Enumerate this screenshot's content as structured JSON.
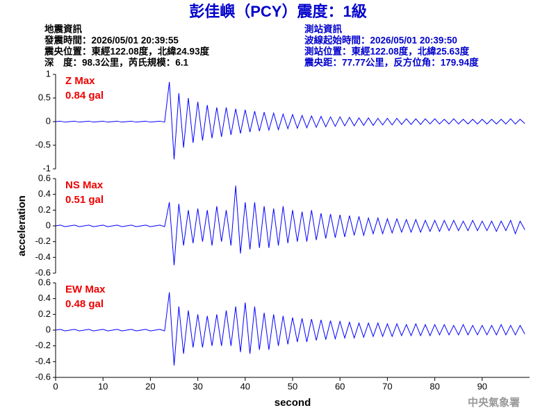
{
  "header": {
    "title": "彭佳嶼（PCY）震度：1級",
    "left": [
      "地震資訊",
      "發震時間：2026/05/01 20:39:55",
      "震央位置：東經122.08度，北緯24.93度",
      "深　度：98.3公里，芮氏規模：6.1"
    ],
    "right": [
      "測站資訊",
      "波線起始時間：2026/05/01 20:39:50",
      "測站位置：東經122.08度，北緯25.63度",
      "震央距：77.77公里，反方位角：179.94度"
    ],
    "footer": "中央氣象署"
  },
  "chart_data": [
    {
      "type": "line",
      "annotations": [
        "Z Max",
        "0.84 gal"
      ],
      "color": "#0000ff",
      "xlim": [
        0,
        100
      ],
      "ylim": [
        -1,
        1
      ],
      "yticks": [
        -1,
        -0.5,
        0,
        0.5,
        1
      ],
      "x": [
        0,
        1,
        2,
        3,
        4,
        5,
        6,
        7,
        8,
        9,
        10,
        11,
        12,
        13,
        14,
        15,
        16,
        17,
        18,
        19,
        20,
        21,
        22,
        23,
        24,
        25,
        26,
        27,
        28,
        29,
        30,
        31,
        32,
        33,
        34,
        35,
        36,
        37,
        38,
        39,
        40,
        41,
        42,
        43,
        44,
        45,
        46,
        47,
        48,
        49,
        50,
        51,
        52,
        53,
        54,
        55,
        56,
        57,
        58,
        59,
        60,
        61,
        62,
        63,
        64,
        65,
        66,
        67,
        68,
        69,
        70,
        71,
        72,
        73,
        74,
        75,
        76,
        77,
        78,
        79,
        80,
        81,
        82,
        83,
        84,
        85,
        86,
        87,
        88,
        89,
        90,
        91,
        92,
        93,
        94,
        95,
        96,
        97,
        98,
        99
      ],
      "values": [
        0,
        0.01,
        -0.01,
        0,
        0.01,
        -0.01,
        0,
        0.01,
        -0.01,
        0,
        0.01,
        -0.01,
        0,
        0.01,
        -0.01,
        0,
        0.01,
        -0.01,
        0,
        0.01,
        -0.01,
        0,
        0.01,
        -0.01,
        0.84,
        -0.8,
        0.6,
        -0.55,
        0.5,
        -0.45,
        0.42,
        -0.4,
        0.35,
        -0.35,
        0.3,
        -0.32,
        0.3,
        -0.28,
        0.27,
        -0.25,
        0.25,
        -0.22,
        0.22,
        -0.2,
        0.2,
        -0.18,
        0.18,
        -0.17,
        0.16,
        -0.15,
        0.15,
        -0.14,
        0.13,
        -0.13,
        0.12,
        -0.12,
        0.11,
        -0.11,
        0.1,
        -0.1,
        0.1,
        -0.09,
        0.09,
        -0.09,
        0.08,
        -0.08,
        0.08,
        -0.08,
        0.07,
        -0.07,
        0.07,
        -0.07,
        0.07,
        -0.06,
        0.06,
        -0.06,
        0.06,
        -0.06,
        0.06,
        -0.05,
        0.06,
        -0.05,
        0.05,
        -0.05,
        0.06,
        -0.05,
        0.05,
        -0.05,
        0.05,
        -0.05,
        0.05,
        -0.05,
        0.05,
        -0.05,
        0.05,
        -0.05,
        0.06,
        -0.05,
        0.05,
        -0.04
      ]
    },
    {
      "type": "line",
      "annotations": [
        "NS Max",
        "0.51 gal"
      ],
      "color": "#0000ff",
      "ylabel": "acceleration",
      "xlim": [
        0,
        100
      ],
      "ylim": [
        -0.6,
        0.6
      ],
      "yticks": [
        -0.6,
        -0.4,
        -0.2,
        0,
        0.2,
        0.4,
        0.6
      ],
      "x": [
        0,
        1,
        2,
        3,
        4,
        5,
        6,
        7,
        8,
        9,
        10,
        11,
        12,
        13,
        14,
        15,
        16,
        17,
        18,
        19,
        20,
        21,
        22,
        23,
        24,
        25,
        26,
        27,
        28,
        29,
        30,
        31,
        32,
        33,
        34,
        35,
        36,
        37,
        38,
        39,
        40,
        41,
        42,
        43,
        44,
        45,
        46,
        47,
        48,
        49,
        50,
        51,
        52,
        53,
        54,
        55,
        56,
        57,
        58,
        59,
        60,
        61,
        62,
        63,
        64,
        65,
        66,
        67,
        68,
        69,
        70,
        71,
        72,
        73,
        74,
        75,
        76,
        77,
        78,
        79,
        80,
        81,
        82,
        83,
        84,
        85,
        86,
        87,
        88,
        89,
        90,
        91,
        92,
        93,
        94,
        95,
        96,
        97,
        98,
        99
      ],
      "values": [
        0,
        0.01,
        -0.01,
        0,
        0.01,
        -0.01,
        0,
        0.01,
        -0.01,
        0,
        0.01,
        -0.01,
        0,
        0.01,
        -0.01,
        0,
        0.01,
        -0.01,
        0,
        0.01,
        -0.01,
        0,
        0.01,
        -0.01,
        0.3,
        -0.5,
        0.28,
        -0.25,
        0.2,
        -0.22,
        0.22,
        -0.2,
        0.2,
        -0.25,
        0.25,
        -0.2,
        0.2,
        -0.25,
        0.51,
        -0.35,
        0.3,
        -0.3,
        0.3,
        -0.28,
        0.25,
        -0.28,
        0.22,
        -0.25,
        0.25,
        -0.22,
        0.2,
        -0.2,
        0.18,
        -0.2,
        0.2,
        -0.18,
        0.16,
        -0.16,
        0.15,
        -0.15,
        0.14,
        -0.14,
        0.13,
        -0.12,
        0.12,
        -0.12,
        0.1,
        -0.1,
        0.1,
        -0.1,
        0.09,
        -0.09,
        0.09,
        -0.08,
        0.08,
        -0.08,
        0.08,
        -0.08,
        0.07,
        -0.07,
        0.07,
        -0.07,
        0.07,
        -0.06,
        0.07,
        -0.06,
        0.06,
        -0.06,
        0.07,
        -0.06,
        0.06,
        -0.06,
        0.06,
        -0.07,
        0.06,
        -0.06,
        0.07,
        -0.1,
        0.06,
        -0.05
      ]
    },
    {
      "type": "line",
      "annotations": [
        "EW Max",
        "0.48 gal"
      ],
      "color": "#0000ff",
      "xlabel": "second",
      "xlim": [
        0,
        100
      ],
      "xticks": [
        0,
        10,
        20,
        30,
        40,
        50,
        60,
        70,
        80,
        90
      ],
      "ylim": [
        -0.6,
        0.6
      ],
      "yticks": [
        -0.6,
        -0.4,
        -0.2,
        0,
        0.2,
        0.4,
        0.6
      ],
      "x": [
        0,
        1,
        2,
        3,
        4,
        5,
        6,
        7,
        8,
        9,
        10,
        11,
        12,
        13,
        14,
        15,
        16,
        17,
        18,
        19,
        20,
        21,
        22,
        23,
        24,
        25,
        26,
        27,
        28,
        29,
        30,
        31,
        32,
        33,
        34,
        35,
        36,
        37,
        38,
        39,
        40,
        41,
        42,
        43,
        44,
        45,
        46,
        47,
        48,
        49,
        50,
        51,
        52,
        53,
        54,
        55,
        56,
        57,
        58,
        59,
        60,
        61,
        62,
        63,
        64,
        65,
        66,
        67,
        68,
        69,
        70,
        71,
        72,
        73,
        74,
        75,
        76,
        77,
        78,
        79,
        80,
        81,
        82,
        83,
        84,
        85,
        86,
        87,
        88,
        89,
        90,
        91,
        92,
        93,
        94,
        95,
        96,
        97,
        98,
        99
      ],
      "values": [
        0,
        0.01,
        -0.01,
        0,
        0.01,
        -0.01,
        0,
        0.01,
        -0.01,
        0,
        0.01,
        -0.01,
        0,
        0.01,
        -0.01,
        0,
        0.01,
        -0.01,
        0,
        0.01,
        -0.01,
        0,
        0.01,
        -0.01,
        0.48,
        -0.45,
        0.3,
        -0.3,
        0.25,
        -0.22,
        0.2,
        -0.22,
        0.18,
        -0.2,
        0.2,
        -0.2,
        0.25,
        -0.2,
        0.3,
        -0.28,
        0.35,
        -0.3,
        0.3,
        -0.25,
        0.22,
        -0.25,
        0.2,
        -0.2,
        0.18,
        -0.18,
        0.16,
        -0.15,
        0.15,
        -0.15,
        0.14,
        -0.13,
        0.13,
        -0.12,
        0.12,
        -0.11,
        0.11,
        -0.1,
        0.1,
        -0.1,
        0.09,
        -0.09,
        0.09,
        -0.08,
        0.09,
        -0.08,
        0.08,
        -0.08,
        0.08,
        -0.07,
        0.07,
        -0.07,
        0.08,
        -0.07,
        0.07,
        -0.07,
        0.07,
        -0.06,
        0.07,
        -0.06,
        0.06,
        -0.06,
        0.07,
        -0.06,
        0.06,
        -0.06,
        0.06,
        -0.06,
        0.06,
        -0.06,
        0.07,
        -0.06,
        0.06,
        -0.06,
        0.06,
        -0.05
      ]
    }
  ]
}
